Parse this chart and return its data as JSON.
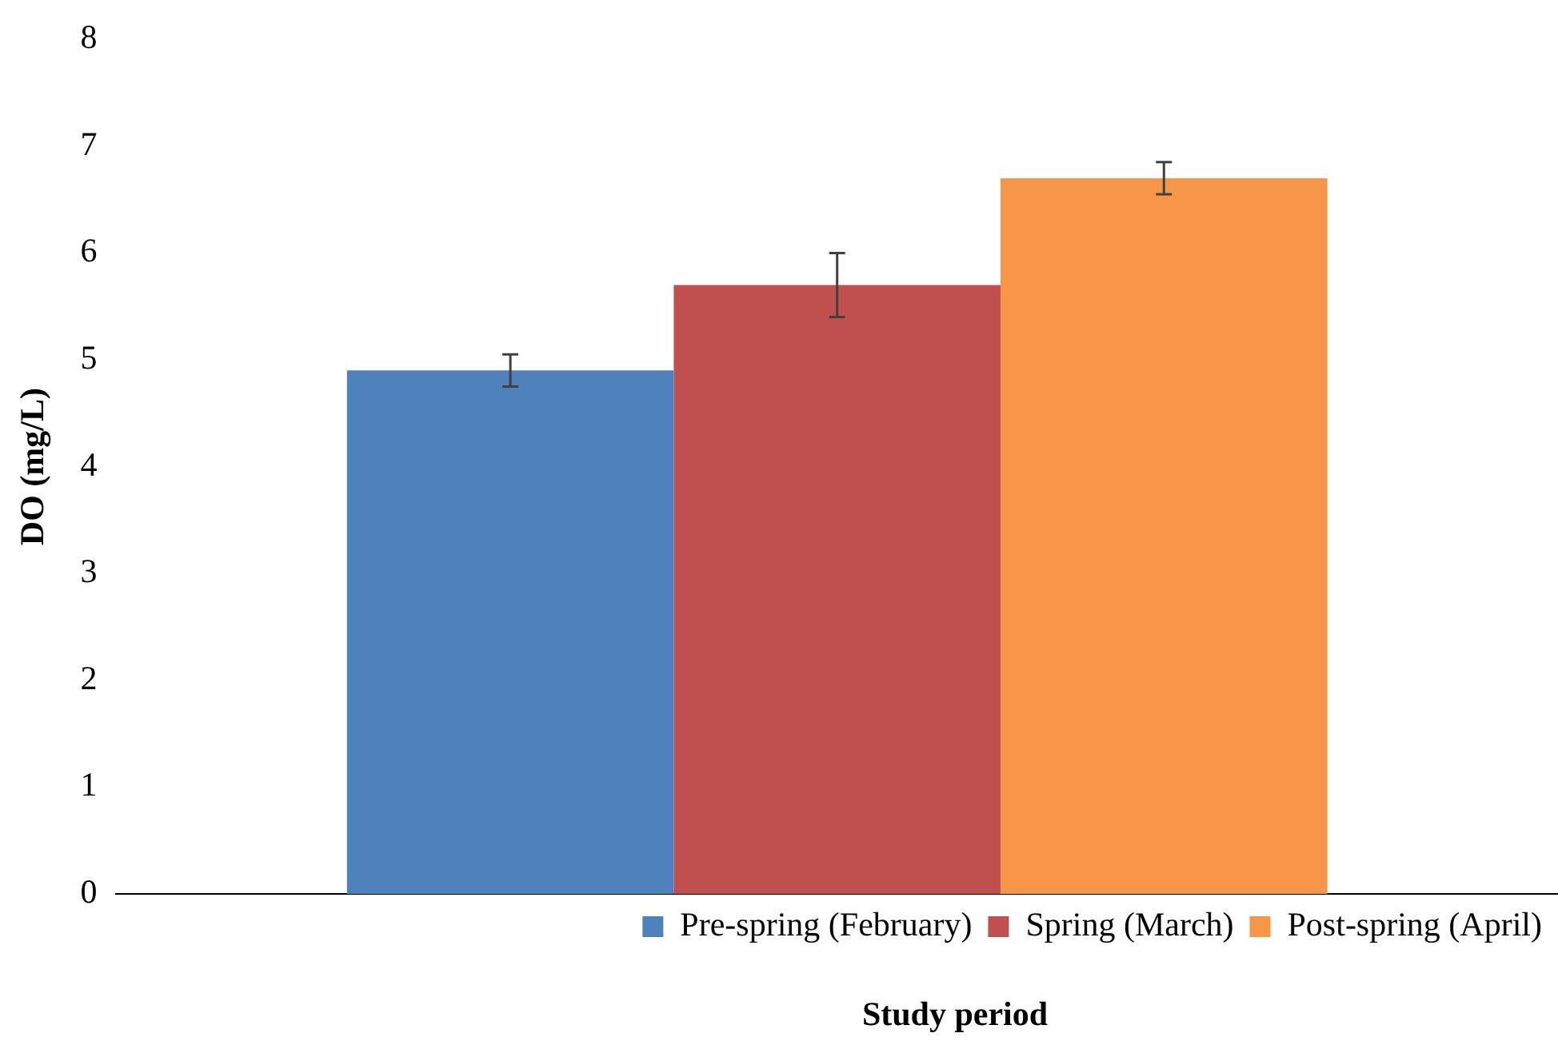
{
  "chart_data": {
    "type": "bar",
    "xlabel": "Study period",
    "ylabel": "DO (mg/L)",
    "categories": [
      null
    ],
    "series": [
      {
        "name": "Pre-spring (February)",
        "color": "#4f81bd",
        "values": [
          4.9
        ],
        "errors": [
          0.15
        ]
      },
      {
        "name": "Spring (March)",
        "color": "#c0504d",
        "values": [
          5.7
        ],
        "errors": [
          0.3
        ]
      },
      {
        "name": "Post-spring (April)",
        "color": "#f79646",
        "values": [
          6.7
        ],
        "errors": [
          0.15
        ]
      }
    ],
    "ylim": [
      0,
      8
    ],
    "yticks": [
      0,
      1,
      2,
      3,
      4,
      5,
      6,
      7,
      8
    ],
    "grid": false,
    "legend": "bottom"
  }
}
